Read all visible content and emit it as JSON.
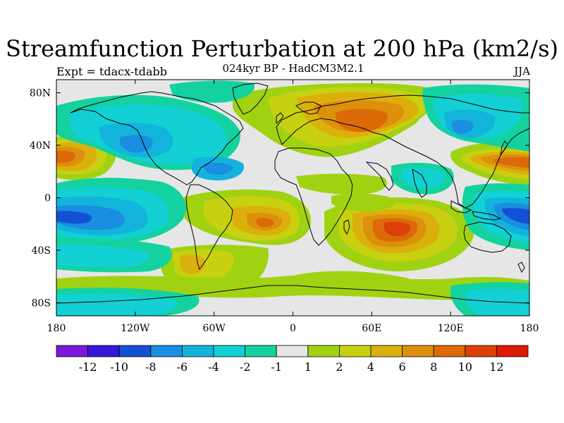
{
  "title": "Streamfunction Perturbation at 200 hPa (km2/s)",
  "experiment_label": "Expt = tdacx-tdabb",
  "subtitle": "024kyr BP - HadCM3M2.1",
  "season": "JJA",
  "axes": {
    "lat_ticks": [
      {
        "lat": 80,
        "label": "80N"
      },
      {
        "lat": 40,
        "label": "40N"
      },
      {
        "lat": 0,
        "label": "0"
      },
      {
        "lat": -40,
        "label": "40S"
      },
      {
        "lat": -80,
        "label": "80S"
      }
    ],
    "lon_ticks": [
      {
        "lon": -180,
        "label": "180"
      },
      {
        "lon": -120,
        "label": "120W"
      },
      {
        "lon": -60,
        "label": "60W"
      },
      {
        "lon": 0,
        "label": "0"
      },
      {
        "lon": 60,
        "label": "60E"
      },
      {
        "lon": 120,
        "label": "120E"
      },
      {
        "lon": 180,
        "label": "180"
      }
    ],
    "lat_range": [
      -90,
      90
    ],
    "lon_range": [
      -180,
      180
    ]
  },
  "colorbar": {
    "colors": [
      "#7b18db",
      "#3418d8",
      "#1450d4",
      "#1a8ee0",
      "#13b4dc",
      "#12d0d4",
      "#14d2a0",
      "#e6e6e6",
      "#a0d212",
      "#c8d012",
      "#dcb00c",
      "#dc900c",
      "#dc6a08",
      "#dc4008",
      "#dc1a00"
    ],
    "labels": [
      "-12",
      "-10",
      "-8",
      "-6",
      "-4",
      "-2",
      "-1",
      "1",
      "2",
      "4",
      "6",
      "8",
      "10",
      "12"
    ]
  },
  "map": {
    "projection": "cylindrical-equidistant",
    "coastline_color": "#000000"
  }
}
